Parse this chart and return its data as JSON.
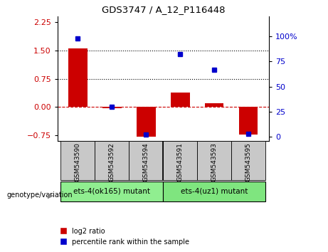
{
  "title": "GDS3747 / A_12_P116448",
  "samples": [
    "GSM543590",
    "GSM543592",
    "GSM543594",
    "GSM543591",
    "GSM543593",
    "GSM543595"
  ],
  "log2_ratio": [
    1.55,
    -0.02,
    -0.78,
    0.38,
    0.1,
    -0.72
  ],
  "percentile_rank": [
    98,
    30,
    2,
    82,
    67,
    3
  ],
  "groups": [
    {
      "label": "ets-4(ok165) mutant",
      "indices": [
        0,
        1,
        2
      ],
      "color": "#90EE90"
    },
    {
      "label": "ets-4(uz1) mutant",
      "indices": [
        3,
        4,
        5
      ],
      "color": "#7FE57F"
    }
  ],
  "bar_color": "#CC0000",
  "dot_color": "#0000CC",
  "ylim_left": [
    -0.9,
    2.4
  ],
  "ylim_right": [
    -4.5,
    120
  ],
  "yticks_left": [
    -0.75,
    0,
    0.75,
    1.5,
    2.25
  ],
  "yticks_right": [
    0,
    25,
    50,
    75,
    100
  ],
  "ytick_right_labels": [
    "0",
    "25",
    "50",
    "75",
    "100%"
  ],
  "hlines": [
    0.75,
    1.5
  ],
  "tick_area_color": "#c8c8c8",
  "legend_items": [
    "log2 ratio",
    "percentile rank within the sample"
  ]
}
